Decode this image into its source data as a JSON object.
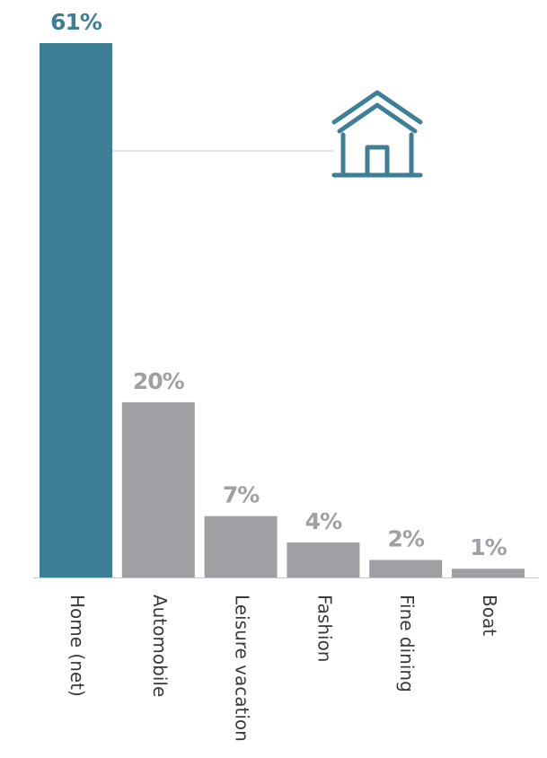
{
  "chart_data": {
    "type": "bar",
    "categories": [
      "Home (net)",
      "Automobile",
      "Leisure vacation",
      "Fashion",
      "Fine dining",
      "Boat"
    ],
    "values": [
      61,
      20,
      7,
      4,
      2,
      1
    ],
    "value_labels": [
      "61%",
      "20%",
      "7%",
      "4%",
      "2%",
      "1%"
    ],
    "colors": [
      "#3d7f96",
      "#a0a0a4",
      "#a0a0a4",
      "#a0a0a4",
      "#a0a0a4",
      "#a0a0a4"
    ]
  }
}
